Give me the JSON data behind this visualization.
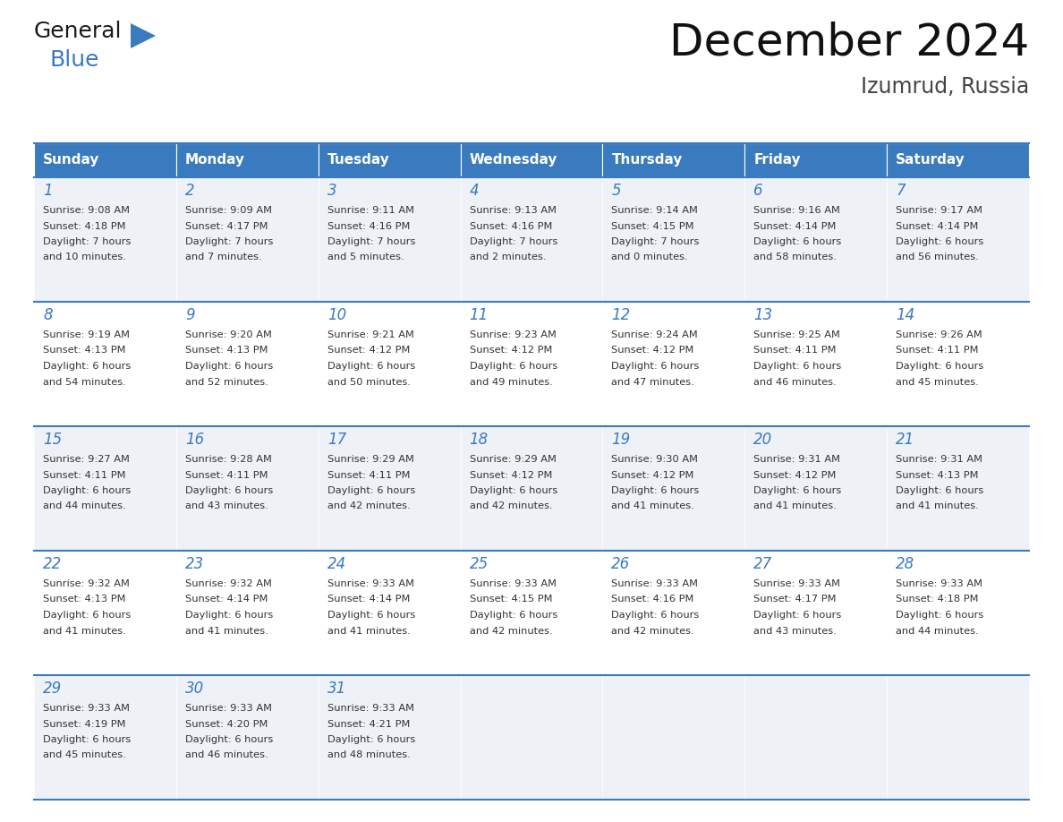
{
  "title": "December 2024",
  "subtitle": "Izumrud, Russia",
  "days_of_week": [
    "Sunday",
    "Monday",
    "Tuesday",
    "Wednesday",
    "Thursday",
    "Friday",
    "Saturday"
  ],
  "header_bg": "#3a7abf",
  "header_text_color": "#ffffff",
  "row_bg_even": "#eef2f7",
  "row_bg_odd": "#ffffff",
  "cell_border_color": "#3a7abf",
  "day_text_color": "#3a7abf",
  "info_text_color": "#333333",
  "title_color": "#111111",
  "subtitle_color": "#444444",
  "calendar_data": [
    [
      {
        "day": 1,
        "sunrise": "9:08 AM",
        "sunset": "4:18 PM",
        "daylight": "7 hours and 10 minutes."
      },
      {
        "day": 2,
        "sunrise": "9:09 AM",
        "sunset": "4:17 PM",
        "daylight": "7 hours and 7 minutes."
      },
      {
        "day": 3,
        "sunrise": "9:11 AM",
        "sunset": "4:16 PM",
        "daylight": "7 hours and 5 minutes."
      },
      {
        "day": 4,
        "sunrise": "9:13 AM",
        "sunset": "4:16 PM",
        "daylight": "7 hours and 2 minutes."
      },
      {
        "day": 5,
        "sunrise": "9:14 AM",
        "sunset": "4:15 PM",
        "daylight": "7 hours and 0 minutes."
      },
      {
        "day": 6,
        "sunrise": "9:16 AM",
        "sunset": "4:14 PM",
        "daylight": "6 hours and 58 minutes."
      },
      {
        "day": 7,
        "sunrise": "9:17 AM",
        "sunset": "4:14 PM",
        "daylight": "6 hours and 56 minutes."
      }
    ],
    [
      {
        "day": 8,
        "sunrise": "9:19 AM",
        "sunset": "4:13 PM",
        "daylight": "6 hours and 54 minutes."
      },
      {
        "day": 9,
        "sunrise": "9:20 AM",
        "sunset": "4:13 PM",
        "daylight": "6 hours and 52 minutes."
      },
      {
        "day": 10,
        "sunrise": "9:21 AM",
        "sunset": "4:12 PM",
        "daylight": "6 hours and 50 minutes."
      },
      {
        "day": 11,
        "sunrise": "9:23 AM",
        "sunset": "4:12 PM",
        "daylight": "6 hours and 49 minutes."
      },
      {
        "day": 12,
        "sunrise": "9:24 AM",
        "sunset": "4:12 PM",
        "daylight": "6 hours and 47 minutes."
      },
      {
        "day": 13,
        "sunrise": "9:25 AM",
        "sunset": "4:11 PM",
        "daylight": "6 hours and 46 minutes."
      },
      {
        "day": 14,
        "sunrise": "9:26 AM",
        "sunset": "4:11 PM",
        "daylight": "6 hours and 45 minutes."
      }
    ],
    [
      {
        "day": 15,
        "sunrise": "9:27 AM",
        "sunset": "4:11 PM",
        "daylight": "6 hours and 44 minutes."
      },
      {
        "day": 16,
        "sunrise": "9:28 AM",
        "sunset": "4:11 PM",
        "daylight": "6 hours and 43 minutes."
      },
      {
        "day": 17,
        "sunrise": "9:29 AM",
        "sunset": "4:11 PM",
        "daylight": "6 hours and 42 minutes."
      },
      {
        "day": 18,
        "sunrise": "9:29 AM",
        "sunset": "4:12 PM",
        "daylight": "6 hours and 42 minutes."
      },
      {
        "day": 19,
        "sunrise": "9:30 AM",
        "sunset": "4:12 PM",
        "daylight": "6 hours and 41 minutes."
      },
      {
        "day": 20,
        "sunrise": "9:31 AM",
        "sunset": "4:12 PM",
        "daylight": "6 hours and 41 minutes."
      },
      {
        "day": 21,
        "sunrise": "9:31 AM",
        "sunset": "4:13 PM",
        "daylight": "6 hours and 41 minutes."
      }
    ],
    [
      {
        "day": 22,
        "sunrise": "9:32 AM",
        "sunset": "4:13 PM",
        "daylight": "6 hours and 41 minutes."
      },
      {
        "day": 23,
        "sunrise": "9:32 AM",
        "sunset": "4:14 PM",
        "daylight": "6 hours and 41 minutes."
      },
      {
        "day": 24,
        "sunrise": "9:33 AM",
        "sunset": "4:14 PM",
        "daylight": "6 hours and 41 minutes."
      },
      {
        "day": 25,
        "sunrise": "9:33 AM",
        "sunset": "4:15 PM",
        "daylight": "6 hours and 42 minutes."
      },
      {
        "day": 26,
        "sunrise": "9:33 AM",
        "sunset": "4:16 PM",
        "daylight": "6 hours and 42 minutes."
      },
      {
        "day": 27,
        "sunrise": "9:33 AM",
        "sunset": "4:17 PM",
        "daylight": "6 hours and 43 minutes."
      },
      {
        "day": 28,
        "sunrise": "9:33 AM",
        "sunset": "4:18 PM",
        "daylight": "6 hours and 44 minutes."
      }
    ],
    [
      {
        "day": 29,
        "sunrise": "9:33 AM",
        "sunset": "4:19 PM",
        "daylight": "6 hours and 45 minutes."
      },
      {
        "day": 30,
        "sunrise": "9:33 AM",
        "sunset": "4:20 PM",
        "daylight": "6 hours and 46 minutes."
      },
      {
        "day": 31,
        "sunrise": "9:33 AM",
        "sunset": "4:21 PM",
        "daylight": "6 hours and 48 minutes."
      },
      null,
      null,
      null,
      null
    ]
  ],
  "logo_general_color": "#1a1a1a",
  "logo_blue_color": "#3a7abf",
  "logo_triangle_color": "#3a7abf",
  "fig_width": 11.88,
  "fig_height": 9.18,
  "dpi": 100
}
